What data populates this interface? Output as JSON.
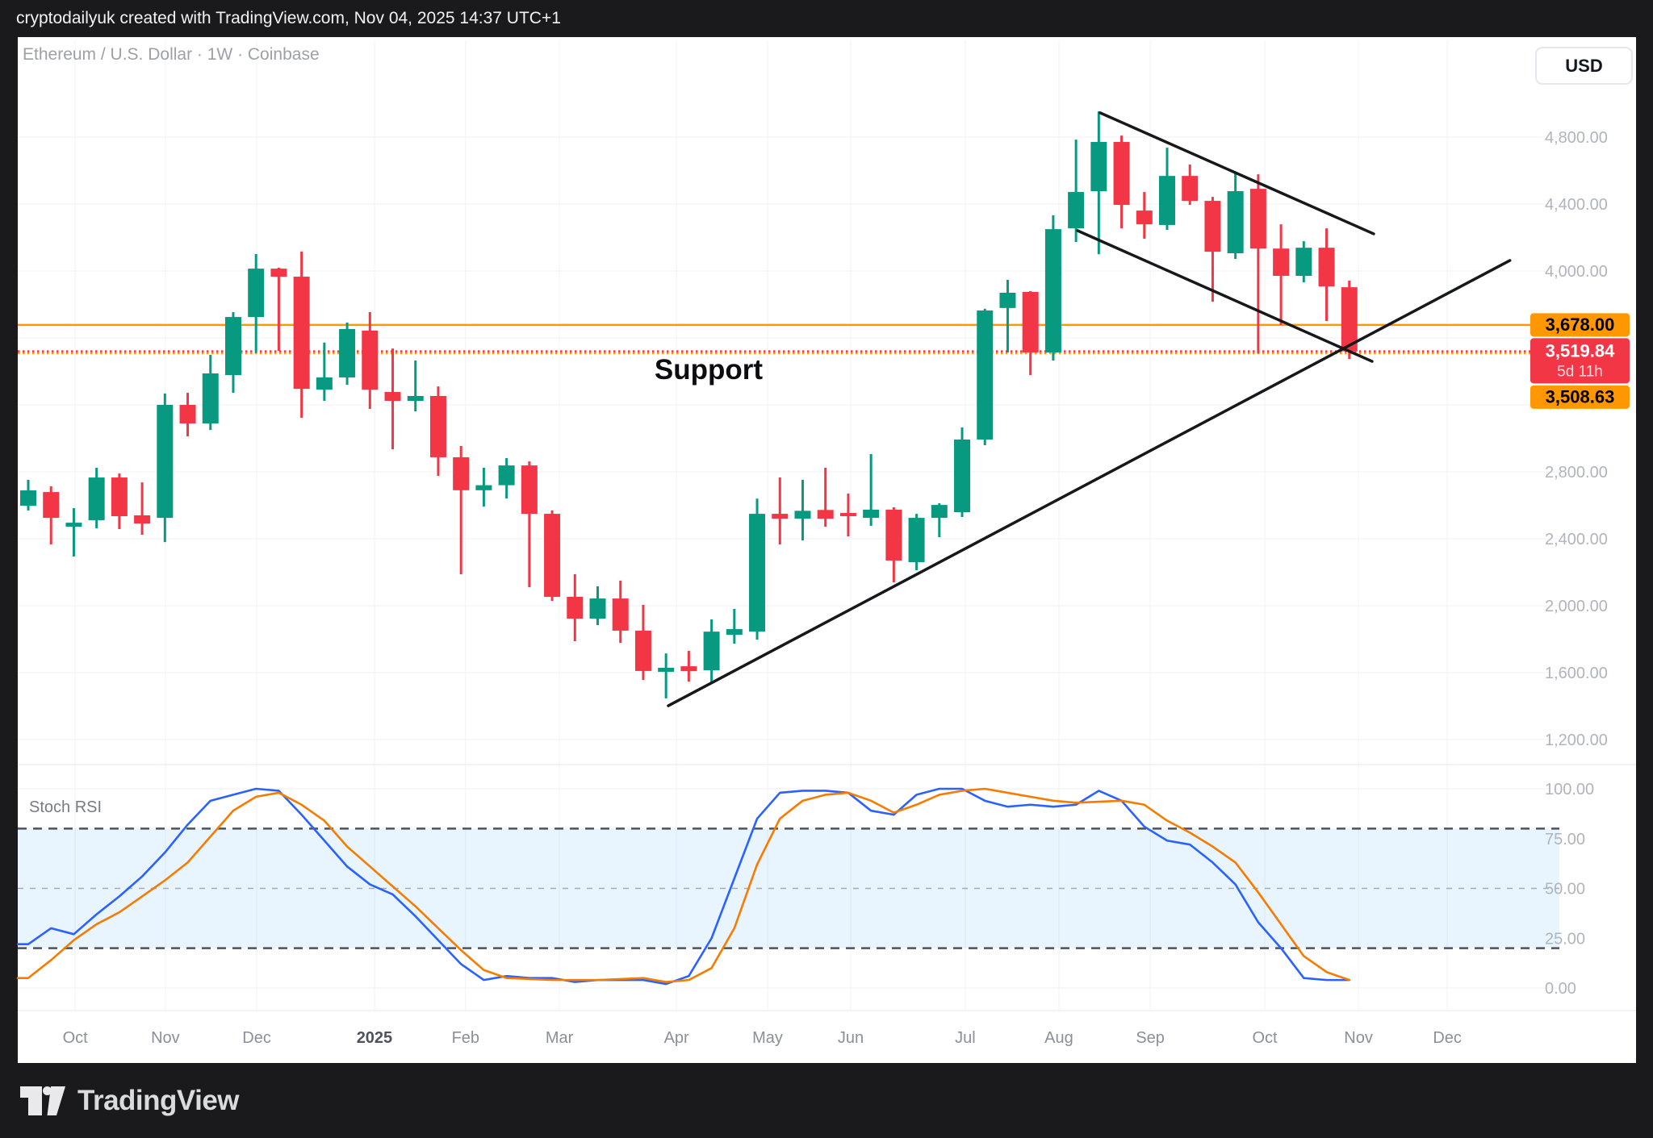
{
  "attribution": {
    "text": "cryptodailyuk created with TradingView.com, Nov 04, 2025 14:37 UTC+1"
  },
  "header": {
    "symbol_title": "Ethereum / U.S. Dollar · 1W · Coinbase",
    "currency_button": "USD"
  },
  "annotations": {
    "support_label": "Support"
  },
  "indicator": {
    "label": "Stoch RSI"
  },
  "watermark": {
    "logo_text": "TradingView"
  },
  "price_tags": [
    {
      "text": "3,678.00",
      "type": "level",
      "bg": "#FF9800",
      "fg": "#000000",
      "price": 3678.0
    },
    {
      "text": "3,519.84",
      "sub": "5d 11h",
      "type": "last-price",
      "bg": "#F23645",
      "fg": "#FFFFFF",
      "price": 3519.84
    },
    {
      "text": "3,508.63",
      "type": "level",
      "bg": "#FF9800",
      "fg": "#000000",
      "price": 3508.63
    }
  ],
  "colors": {
    "up": "#089981",
    "down": "#F23645",
    "level_orange": "#FF9800",
    "last_price_red": "#F23645",
    "stoch_k": "#2962FF",
    "stoch_d": "#F57C00",
    "band_fill": "rgba(33,150,243,0.10)",
    "grid": "#F0F2F6",
    "trendline": "#17181B",
    "tick_text": "#B0B4BC",
    "month_text": "#8C8F98",
    "year_text": "#4E525C",
    "dashed_dark": "#4D525F",
    "dashed_mid": "#A8ABB5",
    "separator": "#E4E7EC"
  },
  "chart_data": [
    {
      "type": "candlestick",
      "title": "Ethereum / U.S. Dollar · 1W · Coinbase",
      "timeframe": "1W",
      "exchange": "Coinbase",
      "ylim": [
        1050,
        5400
      ],
      "grid_values": [
        4800,
        4400,
        4000,
        3600,
        3200,
        2800,
        2400,
        2000,
        1600,
        1200
      ],
      "visible_tick_values": [
        4800,
        4400,
        4000,
        2800,
        2400,
        2000,
        1600,
        1200
      ],
      "month_labels": [
        {
          "label": "Oct",
          "i": 2.06
        },
        {
          "label": "Nov",
          "i": 6.02
        },
        {
          "label": "Dec",
          "i": 10.03
        },
        {
          "label": "2025",
          "i": 15.2,
          "bold": true
        },
        {
          "label": "Feb",
          "i": 19.2
        },
        {
          "label": "Mar",
          "i": 23.32
        },
        {
          "label": "Apr",
          "i": 28.46
        },
        {
          "label": "May",
          "i": 32.46
        },
        {
          "label": "Jun",
          "i": 36.11
        },
        {
          "label": "Jul",
          "i": 41.14
        },
        {
          "label": "Aug",
          "i": 45.25
        },
        {
          "label": "Sep",
          "i": 49.26
        },
        {
          "label": "Oct",
          "i": 54.29
        },
        {
          "label": "Nov",
          "i": 58.4
        },
        {
          "label": "Dec",
          "i": 62.3
        }
      ],
      "candles_ohlc": [
        [
          2597,
          2752,
          2569,
          2689
        ],
        [
          2679,
          2713,
          2366,
          2525
        ],
        [
          2472,
          2583,
          2294,
          2496
        ],
        [
          2511,
          2824,
          2462,
          2766
        ],
        [
          2766,
          2790,
          2458,
          2535
        ],
        [
          2540,
          2737,
          2424,
          2491
        ],
        [
          2525,
          3268,
          2380,
          3200
        ],
        [
          3200,
          3272,
          3012,
          3089
        ],
        [
          3089,
          3499,
          3050,
          3388
        ],
        [
          3378,
          3754,
          3272,
          3725
        ],
        [
          3725,
          4101,
          3510,
          4014
        ],
        [
          4014,
          4020,
          3523,
          3966
        ],
        [
          3966,
          4116,
          3123,
          3296
        ],
        [
          3291,
          3572,
          3224,
          3364
        ],
        [
          3364,
          3692,
          3320,
          3653
        ],
        [
          3644,
          3754,
          3176,
          3291
        ],
        [
          3277,
          3537,
          2935,
          3224
        ],
        [
          3224,
          3465,
          3161,
          3253
        ],
        [
          3253,
          3310,
          2776,
          2887
        ],
        [
          2887,
          2954,
          2188,
          2690
        ],
        [
          2690,
          2824,
          2592,
          2720
        ],
        [
          2720,
          2882,
          2640,
          2838
        ],
        [
          2838,
          2862,
          2111,
          2549
        ],
        [
          2549,
          2570,
          2029,
          2053
        ],
        [
          2053,
          2188,
          1788,
          1923
        ],
        [
          1923,
          2116,
          1884,
          2043
        ],
        [
          2043,
          2150,
          1778,
          1851
        ],
        [
          1851,
          2005,
          1556,
          1610
        ],
        [
          1605,
          1715,
          1446,
          1629
        ],
        [
          1638,
          1730,
          1546,
          1609
        ],
        [
          1614,
          1918,
          1537,
          1845
        ],
        [
          1826,
          1981,
          1773,
          1860
        ],
        [
          1845,
          2640,
          1797,
          2549
        ],
        [
          2549,
          2766,
          2366,
          2520
        ],
        [
          2520,
          2752,
          2390,
          2567
        ],
        [
          2572,
          2824,
          2472,
          2520
        ],
        [
          2554,
          2670,
          2414,
          2535
        ],
        [
          2525,
          2906,
          2477,
          2574
        ],
        [
          2574,
          2588,
          2140,
          2270
        ],
        [
          2260,
          2549,
          2212,
          2525
        ],
        [
          2525,
          2612,
          2409,
          2602
        ],
        [
          2559,
          3065,
          2530,
          2993
        ],
        [
          2993,
          3774,
          2959,
          3764
        ],
        [
          3779,
          3947,
          3513,
          3870
        ],
        [
          3875,
          3880,
          3378,
          3513
        ],
        [
          3513,
          4333,
          3465,
          4250
        ],
        [
          4255,
          4785,
          4173,
          4472
        ],
        [
          4477,
          4954,
          4100,
          4771
        ],
        [
          4771,
          4809,
          4255,
          4395
        ],
        [
          4361,
          4472,
          4193,
          4279
        ],
        [
          4275,
          4737,
          4245,
          4568
        ],
        [
          4568,
          4636,
          4395,
          4419
        ],
        [
          4419,
          4443,
          3816,
          4115
        ],
        [
          4106,
          4592,
          4072,
          4477
        ],
        [
          4491,
          4578,
          3507,
          4134
        ],
        [
          4134,
          4279,
          3677,
          3971
        ],
        [
          3971,
          4178,
          3932,
          4139
        ],
        [
          4139,
          4255,
          3701,
          3908
        ],
        [
          3903,
          3942,
          3474,
          3519.84
        ]
      ],
      "levels": [
        {
          "price": 3678.0,
          "style": "solid",
          "color": "#FF9800"
        },
        {
          "price": 3508.63,
          "style": "dotted",
          "color": "#FF9800"
        },
        {
          "price": 3519.84,
          "style": "dotted",
          "color": "#F23645",
          "note": "last price"
        }
      ],
      "trendlines": [
        {
          "name": "rising-support",
          "from": {
            "i": 28.1,
            "price": 1402
          },
          "to": {
            "i": 65.05,
            "price": 4063
          }
        },
        {
          "name": "channel-top",
          "from": {
            "i": 47.06,
            "price": 4945
          },
          "to": {
            "i": 59.07,
            "price": 4222
          }
        },
        {
          "name": "channel-bottom",
          "from": {
            "i": 46.07,
            "price": 4241
          },
          "to": {
            "i": 59.0,
            "price": 3460
          }
        }
      ],
      "annotation": {
        "text": "Support",
        "i": 29.87,
        "price": 3398
      }
    },
    {
      "type": "line",
      "title": "Stoch RSI",
      "ylim": [
        0,
        100
      ],
      "ticks": [
        100,
        75,
        50,
        25,
        0
      ],
      "dashed_levels": [
        80,
        50,
        20
      ],
      "band": [
        20,
        80
      ],
      "series": [
        {
          "name": "%K",
          "color": "#2962FF",
          "values": [
            22,
            30,
            27,
            37,
            46,
            56,
            68,
            82,
            94,
            97,
            100,
            99,
            87,
            74,
            61,
            52,
            47,
            36,
            24,
            12,
            4,
            6,
            5,
            5,
            3,
            4,
            4,
            4,
            2,
            6,
            25,
            55,
            85,
            98,
            99,
            99,
            98,
            89,
            87,
            97,
            100,
            100,
            94,
            91,
            92,
            91,
            92,
            99,
            94,
            81,
            74,
            72,
            63,
            52,
            33,
            20,
            5,
            4,
            4
          ]
        },
        {
          "name": "%D",
          "color": "#F57C00",
          "values": [
            5,
            14,
            24,
            32,
            38,
            46,
            54,
            63,
            76,
            89,
            96,
            98,
            92,
            84,
            71,
            61,
            51,
            41,
            30,
            19,
            9,
            5,
            4.5,
            4,
            4,
            4,
            4.5,
            5,
            3,
            4,
            10,
            30,
            62,
            85,
            94,
            97,
            98,
            94,
            88,
            92,
            97,
            99,
            100,
            98,
            96,
            94,
            93,
            93.5,
            94,
            92,
            84,
            78,
            71,
            63,
            48,
            32,
            16,
            8,
            4
          ]
        }
      ]
    }
  ]
}
